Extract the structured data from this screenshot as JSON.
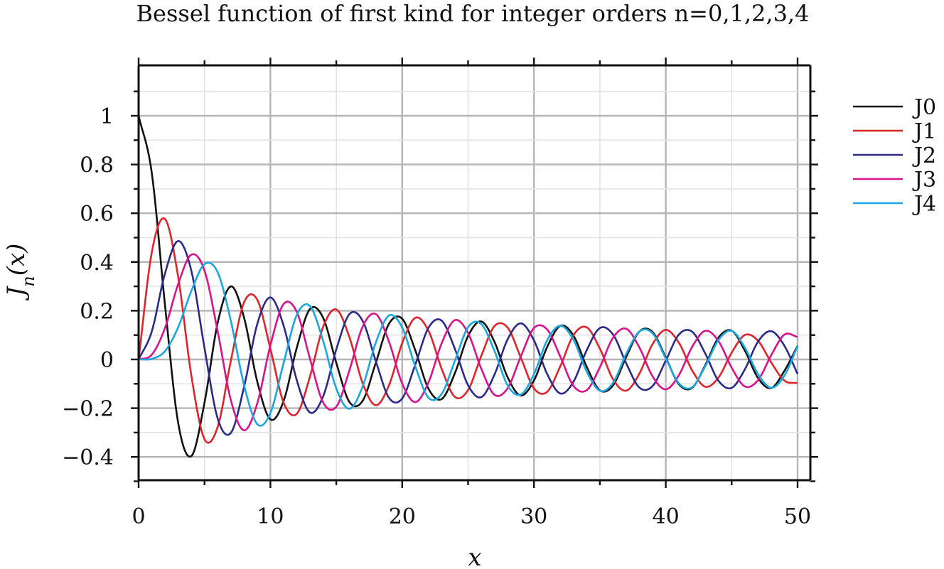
{
  "chart_data": {
    "type": "line",
    "title": "Bessel function of first kind for integer orders n=0,1,2,3,4",
    "xlabel": "x",
    "ylabel": "J_n(x)",
    "xlim": [
      0,
      50
    ],
    "ylim": [
      -0.5,
      1.2
    ],
    "x_ticks": [
      0,
      10,
      20,
      30,
      40,
      50
    ],
    "x_tick_labels": [
      "0",
      "10",
      "20",
      "30",
      "40",
      "50"
    ],
    "y_ticks": [
      -0.4,
      -0.2,
      0,
      0.2,
      0.4,
      0.6,
      0.8,
      1
    ],
    "y_tick_labels": [
      "−0.4",
      "−0.2",
      "0",
      "0.2",
      "0.4",
      "0.6",
      "0.8",
      "1"
    ],
    "grid": true,
    "legend_position": "right",
    "x": [
      0,
      1,
      2,
      3,
      4,
      5,
      6,
      7,
      8,
      9,
      10,
      11,
      12,
      13,
      14,
      15,
      16,
      17,
      18,
      19,
      20,
      21,
      22,
      23,
      24,
      25,
      26,
      27,
      28,
      29,
      30,
      31,
      32,
      33,
      34,
      35,
      36,
      37,
      38,
      39,
      40,
      41,
      42,
      43,
      44,
      45,
      46,
      47,
      48,
      49,
      50
    ],
    "series": [
      {
        "name": "J0",
        "color": "#111111",
        "values": [
          1.0,
          0.7652,
          0.2239,
          -0.2601,
          -0.3971,
          -0.1776,
          0.1506,
          0.3001,
          0.1717,
          -0.0903,
          -0.2459,
          -0.1712,
          0.0477,
          0.2069,
          0.1711,
          -0.0142,
          -0.1749,
          -0.1699,
          -0.0134,
          0.1466,
          0.167,
          0.0366,
          -0.1207,
          -0.1624,
          -0.0562,
          0.0963,
          0.156,
          0.0727,
          -0.0732,
          -0.1478,
          -0.0864,
          0.0511,
          0.138,
          0.0976,
          -0.0301,
          -0.1268,
          -0.1063,
          0.0104,
          0.1148,
          0.1125,
          0.0074,
          -0.1021,
          -0.1163,
          -0.0231,
          0.0893,
          0.118,
          0.0364,
          -0.0765,
          -0.1177,
          -0.047,
          0.0558
        ]
      },
      {
        "name": "J1",
        "color": "#e0242b",
        "values": [
          0.0,
          0.4401,
          0.5767,
          0.3391,
          -0.066,
          -0.3276,
          -0.2767,
          -0.0047,
          0.2346,
          0.2453,
          0.0435,
          -0.1768,
          -0.2234,
          -0.0703,
          0.1334,
          0.2051,
          0.0904,
          -0.0977,
          -0.188,
          -0.1057,
          0.0668,
          0.1711,
          0.1172,
          -0.0392,
          -0.154,
          -0.1254,
          0.0146,
          0.1367,
          0.1306,
          0.0077,
          -0.1188,
          -0.1328,
          -0.0275,
          0.1003,
          0.1319,
          0.0443,
          -0.0816,
          -0.128,
          -0.058,
          0.063,
          0.1213,
          0.068,
          -0.0448,
          -0.1121,
          -0.0742,
          0.0279,
          0.1005,
          0.0767,
          -0.0122,
          -0.0868,
          -0.0973
        ]
      },
      {
        "name": "J2",
        "color": "#2b2a8a",
        "values": [
          0.0,
          0.1149,
          0.3528,
          0.4861,
          0.3641,
          0.0466,
          -0.2429,
          -0.3014,
          -0.113,
          0.1448,
          0.2546,
          0.139,
          -0.0849,
          -0.2177,
          -0.152,
          0.0415,
          0.1863,
          0.1584,
          -0.0075,
          -0.1577,
          -0.1603,
          -0.0203,
          0.1307,
          0.159,
          0.0434,
          -0.1061,
          -0.1548,
          -0.0626,
          0.0825,
          0.1483,
          0.0781,
          -0.0597,
          -0.1398,
          -0.0912,
          0.0378,
          0.1289,
          0.1022,
          -0.0163,
          -0.1156,
          -0.1092,
          -0.0047,
          0.1025,
          0.1141,
          0.0239,
          -0.0876,
          -0.1167,
          -0.0408,
          0.0733,
          0.116,
          0.0562,
          -0.0597
        ]
      },
      {
        "name": "J3",
        "color": "#d9138a",
        "values": [
          0.0,
          0.0196,
          0.1289,
          0.3091,
          0.4302,
          0.3648,
          0.1148,
          -0.1676,
          -0.2911,
          -0.1809,
          0.0584,
          0.2273,
          0.1951,
          0.0033,
          -0.1768,
          -0.194,
          -0.0438,
          0.1349,
          0.1863,
          0.0724,
          -0.0989,
          -0.175,
          -0.0934,
          0.067,
          0.1613,
          0.1081,
          -0.0379,
          -0.1451,
          -0.1179,
          0.0121,
          0.1291,
          0.123,
          0.0111,
          -0.1089,
          -0.1261,
          -0.0318,
          0.0896,
          0.1258,
          0.0487,
          -0.0699,
          -0.1228,
          -0.064,
          0.0516,
          0.1177,
          0.0753,
          -0.034,
          -0.1108,
          -0.0852,
          0.0172,
          0.102,
          0.0927
        ]
      },
      {
        "name": "J4",
        "color": "#1aa8e0",
        "values": [
          0.0,
          0.0025,
          0.034,
          0.132,
          0.2811,
          0.3912,
          0.3576,
          0.1578,
          -0.1054,
          -0.2655,
          -0.2196,
          -0.015,
          0.1825,
          0.2193,
          0.0762,
          -0.1192,
          -0.2026,
          -0.1107,
          0.0696,
          0.1806,
          0.1307,
          -0.0298,
          -0.1575,
          -0.1411,
          -0.0054,
          0.1327,
          0.1455,
          0.0353,
          -0.1066,
          -0.1441,
          -0.0602,
          0.0787,
          0.1383,
          0.0803,
          -0.0501,
          -0.1282,
          -0.0958,
          0.0232,
          0.1145,
          0.1071,
          0.0034,
          -0.0982,
          -0.1141,
          -0.0275,
          0.0797,
          0.1172,
          0.0487,
          -0.0598,
          -0.1164,
          -0.0665,
          0.0545
        ]
      }
    ]
  }
}
